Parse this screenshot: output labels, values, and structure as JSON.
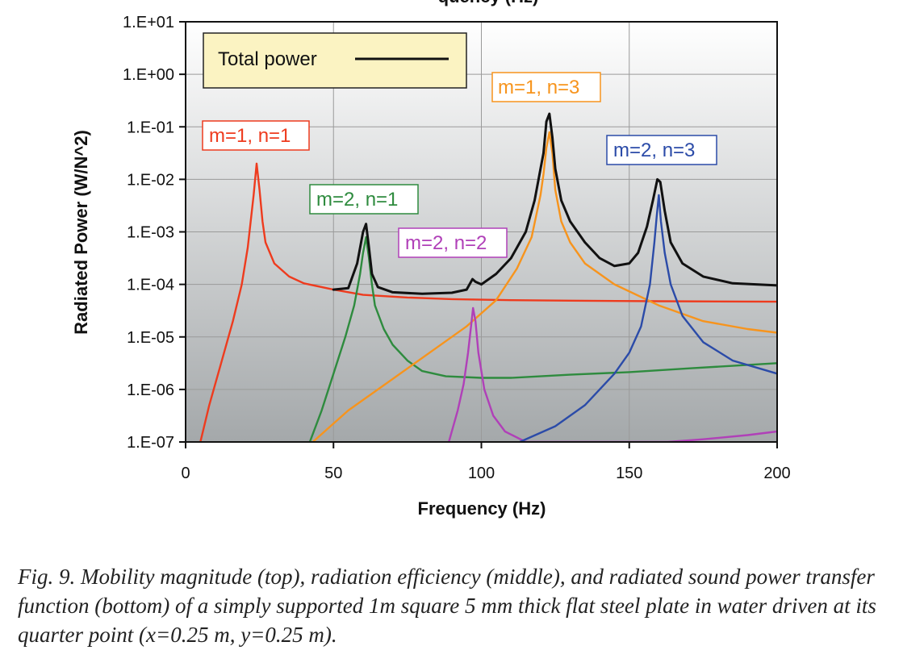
{
  "chart_data": {
    "type": "line",
    "title_fragment": "quency (Hz)",
    "xlabel": "Frequency (Hz)",
    "ylabel": "Radiated Power (W/N^2)",
    "xlim": [
      0,
      200
    ],
    "ylim_log10": [
      -7,
      1
    ],
    "y_scale": "log",
    "x_ticks": [
      0,
      50,
      100,
      150,
      200
    ],
    "x_tick_labels": [
      "0",
      "50",
      "100",
      "150",
      "200"
    ],
    "y_ticks_log10": [
      1,
      0,
      -1,
      -2,
      -3,
      -4,
      -5,
      -6,
      -7
    ],
    "y_tick_labels": [
      "1.E+01",
      "1.E+00",
      "1.E-01",
      "1.E-02",
      "1.E-03",
      "1.E-04",
      "1.E-05",
      "1.E-06",
      "1.E-07"
    ],
    "grid": true,
    "legend": {
      "label": "Total power",
      "placement": "top-left"
    },
    "series": [
      {
        "name": "m=1, n=1",
        "color": "#ee3b1e",
        "points": [
          [
            5,
            -7.0
          ],
          [
            8,
            -6.3
          ],
          [
            12,
            -5.5
          ],
          [
            16,
            -4.7
          ],
          [
            19,
            -4.0
          ],
          [
            21,
            -3.3
          ],
          [
            23,
            -2.3
          ],
          [
            24,
            -1.7
          ],
          [
            25,
            -2.2
          ],
          [
            26,
            -2.8
          ],
          [
            27,
            -3.2
          ],
          [
            30,
            -3.6
          ],
          [
            35,
            -3.85
          ],
          [
            40,
            -3.98
          ],
          [
            50,
            -4.1
          ],
          [
            60,
            -4.2
          ],
          [
            75,
            -4.25
          ],
          [
            90,
            -4.28
          ],
          [
            110,
            -4.3
          ],
          [
            130,
            -4.31
          ],
          [
            160,
            -4.32
          ],
          [
            200,
            -4.33
          ]
        ]
      },
      {
        "name": "m=2, n=1",
        "color": "#2e8b3e",
        "points": [
          [
            42,
            -7.0
          ],
          [
            46,
            -6.4
          ],
          [
            50,
            -5.7
          ],
          [
            54,
            -5.0
          ],
          [
            57,
            -4.4
          ],
          [
            59,
            -3.8
          ],
          [
            60,
            -3.4
          ],
          [
            61,
            -3.1
          ],
          [
            62,
            -3.5
          ],
          [
            63,
            -4.0
          ],
          [
            64,
            -4.4
          ],
          [
            67,
            -4.85
          ],
          [
            70,
            -5.15
          ],
          [
            75,
            -5.45
          ],
          [
            80,
            -5.65
          ],
          [
            88,
            -5.75
          ],
          [
            100,
            -5.78
          ],
          [
            110,
            -5.78
          ],
          [
            130,
            -5.72
          ],
          [
            150,
            -5.67
          ],
          [
            170,
            -5.6
          ],
          [
            200,
            -5.5
          ]
        ]
      },
      {
        "name": "m=1, n=3",
        "color": "#f7941d",
        "points": [
          [
            43,
            -7.0
          ],
          [
            55,
            -6.4
          ],
          [
            70,
            -5.8
          ],
          [
            85,
            -5.2
          ],
          [
            95,
            -4.8
          ],
          [
            105,
            -4.3
          ],
          [
            112,
            -3.7
          ],
          [
            117,
            -3.1
          ],
          [
            120,
            -2.3
          ],
          [
            121,
            -1.9
          ],
          [
            122,
            -1.4
          ],
          [
            123,
            -1.1
          ],
          [
            124,
            -1.5
          ],
          [
            125,
            -2.2
          ],
          [
            127,
            -2.8
          ],
          [
            130,
            -3.2
          ],
          [
            135,
            -3.6
          ],
          [
            145,
            -4.0
          ],
          [
            160,
            -4.4
          ],
          [
            175,
            -4.7
          ],
          [
            190,
            -4.85
          ],
          [
            200,
            -4.92
          ]
        ]
      },
      {
        "name": "m=2, n=2",
        "color": "#b040b8",
        "points": [
          [
            89,
            -7.0
          ],
          [
            92,
            -6.4
          ],
          [
            94,
            -5.9
          ],
          [
            95.5,
            -5.3
          ],
          [
            96.5,
            -4.8
          ],
          [
            97.2,
            -4.45
          ],
          [
            98,
            -4.7
          ],
          [
            99,
            -5.3
          ],
          [
            101,
            -6.0
          ],
          [
            104,
            -6.5
          ],
          [
            108,
            -6.8
          ],
          [
            115,
            -7.0
          ],
          [
            163,
            -7.0
          ],
          [
            175,
            -6.95
          ],
          [
            190,
            -6.87
          ],
          [
            200,
            -6.8
          ]
        ]
      },
      {
        "name": "m=2, n=3",
        "color": "#2b4ba8",
        "points": [
          [
            113,
            -7.0
          ],
          [
            125,
            -6.7
          ],
          [
            135,
            -6.3
          ],
          [
            145,
            -5.7
          ],
          [
            150,
            -5.3
          ],
          [
            154,
            -4.8
          ],
          [
            157,
            -4.0
          ],
          [
            158.5,
            -3.2
          ],
          [
            159.3,
            -2.7
          ],
          [
            160,
            -2.3
          ],
          [
            160.7,
            -2.8
          ],
          [
            162,
            -3.4
          ],
          [
            164,
            -4.0
          ],
          [
            168,
            -4.6
          ],
          [
            175,
            -5.1
          ],
          [
            185,
            -5.45
          ],
          [
            200,
            -5.7
          ]
        ]
      },
      {
        "name": "Total power",
        "color": "#111111",
        "points": [
          [
            50,
            -4.1
          ],
          [
            55,
            -4.07
          ],
          [
            58,
            -3.6
          ],
          [
            60,
            -3.0
          ],
          [
            61,
            -2.85
          ],
          [
            62,
            -3.3
          ],
          [
            63,
            -3.8
          ],
          [
            65,
            -4.05
          ],
          [
            70,
            -4.15
          ],
          [
            80,
            -4.18
          ],
          [
            90,
            -4.16
          ],
          [
            95,
            -4.1
          ],
          [
            97,
            -3.9
          ],
          [
            98,
            -3.95
          ],
          [
            100,
            -4.0
          ],
          [
            105,
            -3.8
          ],
          [
            110,
            -3.5
          ],
          [
            115,
            -3.0
          ],
          [
            118,
            -2.4
          ],
          [
            120,
            -1.8
          ],
          [
            121,
            -1.5
          ],
          [
            122,
            -0.9
          ],
          [
            123,
            -0.75
          ],
          [
            124,
            -1.2
          ],
          [
            125,
            -1.8
          ],
          [
            127,
            -2.4
          ],
          [
            130,
            -2.8
          ],
          [
            135,
            -3.2
          ],
          [
            140,
            -3.5
          ],
          [
            145,
            -3.65
          ],
          [
            150,
            -3.6
          ],
          [
            153,
            -3.4
          ],
          [
            156,
            -2.9
          ],
          [
            158,
            -2.4
          ],
          [
            159.5,
            -2.0
          ],
          [
            160.5,
            -2.05
          ],
          [
            162,
            -2.6
          ],
          [
            164,
            -3.2
          ],
          [
            168,
            -3.6
          ],
          [
            175,
            -3.85
          ],
          [
            185,
            -3.98
          ],
          [
            200,
            -4.02
          ]
        ]
      }
    ],
    "annotations": [
      {
        "text": "m=1, n=1",
        "series": "m=1, n=1"
      },
      {
        "text": "m=2, n=1",
        "series": "m=2, n=1"
      },
      {
        "text": "m=2, n=2",
        "series": "m=2, n=2"
      },
      {
        "text": "m=1, n=3",
        "series": "m=1, n=3"
      },
      {
        "text": "m=2, n=3",
        "series": "m=2, n=3"
      }
    ]
  },
  "caption": "Fig. 9. Mobility magnitude (top), radiation efficiency (middle), and radiated sound power transfer function (bottom) of a simply supported 1m square 5 mm thick flat steel plate in water driven at its quarter point (x=0.25 m, y=0.25 m)."
}
